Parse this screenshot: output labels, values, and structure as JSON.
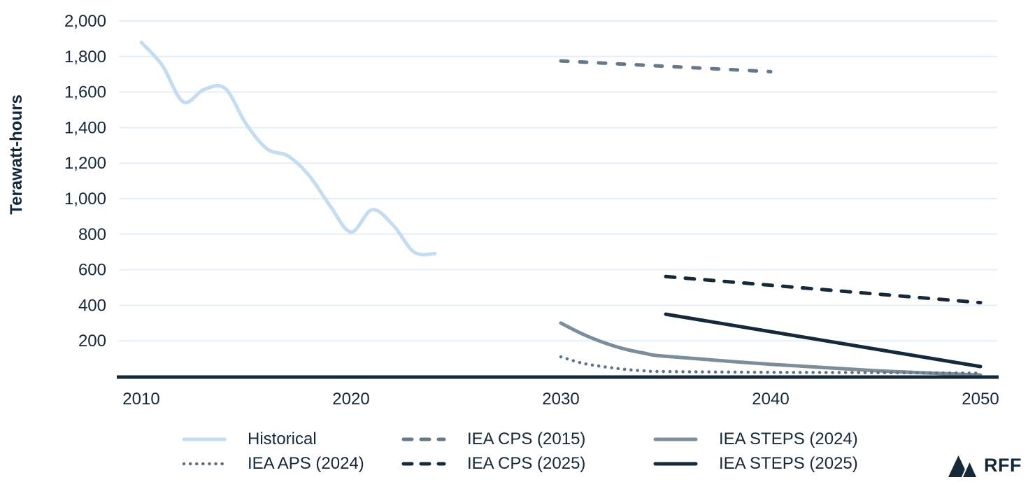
{
  "branding": {
    "logo_text": "RFF"
  },
  "colors": {
    "text": "#14283a",
    "axis": "#14283a",
    "grid": "#e3eef8",
    "historical": "#c3dcf2",
    "gray_dashed": "#64788a",
    "gray_solid": "#7b8d99",
    "gray_dotted": "#5e7485",
    "dark_navy": "#16293a"
  },
  "chart_data": {
    "type": "line",
    "title": "",
    "xlabel": "",
    "ylabel": "Terawatt-hours",
    "ylim": [
      0,
      2000
    ],
    "xlim": [
      2010,
      2050
    ],
    "grid": "horizontal",
    "legend_position": "bottom",
    "x_ticks": [
      {
        "value": 2010,
        "label": "2010"
      },
      {
        "value": 2020,
        "label": "2020"
      },
      {
        "value": 2030,
        "label": "2030"
      },
      {
        "value": 2040,
        "label": "2040"
      },
      {
        "value": 2050,
        "label": "2050"
      }
    ],
    "y_ticks": [
      {
        "value": 200,
        "label": "200"
      },
      {
        "value": 400,
        "label": "400"
      },
      {
        "value": 600,
        "label": "600"
      },
      {
        "value": 800,
        "label": "800"
      },
      {
        "value": 1000,
        "label": "1,000"
      },
      {
        "value": 1200,
        "label": "1,200"
      },
      {
        "value": 1400,
        "label": "1,400"
      },
      {
        "value": 1600,
        "label": "1,600"
      },
      {
        "value": 1800,
        "label": "1,800"
      },
      {
        "value": 2000,
        "label": "2,000"
      }
    ],
    "series": [
      {
        "id": "historical",
        "name": "Historical",
        "line": "solid",
        "color": "#c3dcf2",
        "width": 5,
        "smooth": true,
        "points": [
          [
            2010,
            1880
          ],
          [
            2011,
            1750
          ],
          [
            2012,
            1545
          ],
          [
            2013,
            1615
          ],
          [
            2014,
            1620
          ],
          [
            2015,
            1420
          ],
          [
            2016,
            1280
          ],
          [
            2017,
            1240
          ],
          [
            2018,
            1130
          ],
          [
            2019,
            960
          ],
          [
            2020,
            812
          ],
          [
            2021,
            938
          ],
          [
            2022,
            852
          ],
          [
            2023,
            700
          ],
          [
            2024,
            690
          ]
        ]
      },
      {
        "id": "iea-cps-2015",
        "name": "IEA CPS (2015)",
        "line": "dashed",
        "color": "#64788a",
        "width": 5,
        "dash": "10 17",
        "smooth": false,
        "points": [
          [
            2030,
            1775
          ],
          [
            2040,
            1715
          ]
        ]
      },
      {
        "id": "iea-steps-2024",
        "name": "IEA STEPS (2024)",
        "line": "solid",
        "color": "#7b8d99",
        "width": 5,
        "smooth": true,
        "points": [
          [
            2030,
            300
          ],
          [
            2031,
            240
          ],
          [
            2032,
            192
          ],
          [
            2033,
            155
          ],
          [
            2034,
            130
          ],
          [
            2035,
            113
          ],
          [
            2040,
            68
          ],
          [
            2045,
            32
          ],
          [
            2050,
            8
          ]
        ]
      },
      {
        "id": "iea-aps-2024",
        "name": "IEA APS (2024)",
        "line": "dotted",
        "color": "#5e7485",
        "width": 4.5,
        "dash": "0.1 9.2",
        "smooth": true,
        "points": [
          [
            2030,
            110
          ],
          [
            2031,
            75
          ],
          [
            2032,
            55
          ],
          [
            2033,
            40
          ],
          [
            2034,
            31
          ],
          [
            2035,
            27
          ],
          [
            2040,
            23
          ],
          [
            2045,
            21
          ],
          [
            2050,
            18
          ]
        ]
      },
      {
        "id": "iea-cps-2025",
        "name": "IEA CPS (2025)",
        "line": "dashed",
        "color": "#16293a",
        "width": 5,
        "dash": "13 15",
        "smooth": false,
        "points": [
          [
            2035,
            562
          ],
          [
            2050,
            415
          ]
        ]
      },
      {
        "id": "iea-steps-2025",
        "name": "IEA STEPS (2025)",
        "line": "solid",
        "color": "#16293a",
        "width": 5,
        "smooth": false,
        "points": [
          [
            2035,
            350
          ],
          [
            2050,
            55
          ]
        ]
      }
    ]
  },
  "legend": {
    "items": [
      {
        "label": "Historical",
        "color": "#c3dcf2",
        "style": "solid"
      },
      {
        "label": "IEA CPS (2015)",
        "color": "#64788a",
        "style": "dashed"
      },
      {
        "label": "IEA STEPS (2024)",
        "color": "#7b8d99",
        "style": "solid"
      },
      {
        "label": "IEA APS (2024)",
        "color": "#5e7485",
        "style": "dotted"
      },
      {
        "label": "IEA CPS (2025)",
        "color": "#16293a",
        "style": "dashed"
      },
      {
        "label": "IEA STEPS (2025)",
        "color": "#16293a",
        "style": "solid"
      }
    ]
  }
}
